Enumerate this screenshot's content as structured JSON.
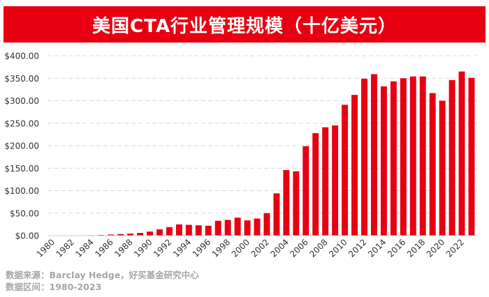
{
  "title": "美国CTA行业管理规模（十亿美元）",
  "source": "数据来源：Barclay Hedge，好买基金研究中心",
  "range": "数据区间：1980-2023",
  "colors": {
    "title_bg": "#e60012",
    "bar": "#e60012",
    "axis_text": "#333333",
    "grid": "#d9d9d9",
    "footer_text": "#a6a6a6"
  },
  "chart_data": {
    "type": "bar",
    "title": "美国CTA行业管理规模（十亿美元）",
    "xlabel": "",
    "ylabel": "",
    "ylim": [
      0,
      400
    ],
    "grid": true,
    "yticks": [
      "$0.00",
      "$50.00",
      "$100.00",
      "$150.00",
      "$200.00",
      "$250.00",
      "$300.00",
      "$350.00",
      "$400.00"
    ],
    "ytick_values": [
      0,
      50,
      100,
      150,
      200,
      250,
      300,
      350,
      400
    ],
    "categories": [
      "1980",
      "1981",
      "1982",
      "1983",
      "1984",
      "1985",
      "1986",
      "1987",
      "1988",
      "1989",
      "1990",
      "1991",
      "1992",
      "1993",
      "1994",
      "1995",
      "1996",
      "1997",
      "1998",
      "1999",
      "2000",
      "2001",
      "2002",
      "2003",
      "2004",
      "2005",
      "2006",
      "2007",
      "2008",
      "2009",
      "2010",
      "2011",
      "2012",
      "2013",
      "2014",
      "2015",
      "2016",
      "2017",
      "2018",
      "2019",
      "2020",
      "2021",
      "2022",
      "2023"
    ],
    "xtick_labels": [
      "1980",
      "1982",
      "1984",
      "1986",
      "1988",
      "1990",
      "1992",
      "1994",
      "1996",
      "1998",
      "2000",
      "2002",
      "2004",
      "2006",
      "2008",
      "2010",
      "2012",
      "2014",
      "2016",
      "2018",
      "2020",
      "2022"
    ],
    "values": [
      0.3,
      0.4,
      0.6,
      0.8,
      1.0,
      1.5,
      2.5,
      3.5,
      4.5,
      6.0,
      9.0,
      14.0,
      19.0,
      25.0,
      24.0,
      23.0,
      22.0,
      33.0,
      35.0,
      40.0,
      34.0,
      38.0,
      50.0,
      94.0,
      146.0,
      143.0,
      199.0,
      228.0,
      241.0,
      245.0,
      291.0,
      313.0,
      349.0,
      359.0,
      332.0,
      343.0,
      350.0,
      354.0,
      354.0,
      317.0,
      300.0,
      346.0,
      365.0,
      351.0
    ]
  }
}
